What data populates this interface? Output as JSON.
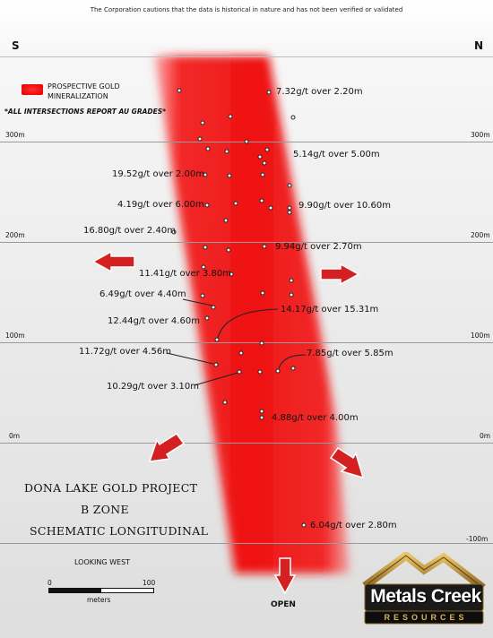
{
  "caution": "The Corporation cautions that the data is historical in nature and has not been verified or validated",
  "compass": {
    "left": "S",
    "right": "N"
  },
  "legend": {
    "label_line1": "PROSPECTIVE GOLD",
    "label_line2": "MINERALIZATION",
    "color": "#ee1111"
  },
  "note": "*ALL INTERSECTIONS REPORT AU GRADES*",
  "elevations": [
    {
      "left": "300m",
      "right": "300m"
    },
    {
      "left": "200m",
      "right": "200m"
    },
    {
      "left": "100m",
      "right": "100m"
    },
    {
      "left": "0m",
      "right": "0m"
    },
    {
      "left": "",
      "right": "-100m"
    }
  ],
  "intersections": [
    "7.32g/t over 2.20m",
    "5.14g/t over 5.00m",
    "19.52g/t over 2.00m",
    "4.19g/t over 6.00m",
    "9.90g/t over 10.60m",
    "16.80g/t over 2.40m",
    "9.94g/t over 2.70m",
    "11.41g/t over 3.80m",
    "6.49g/t over 4.40m",
    "14.17g/t over 15.31m",
    "12.44g/t over 4.60m",
    "11.72g/t over 4.56m",
    "7.85g/t over 5.85m",
    "10.29g/t over 3.10m",
    "4.88g/t over 4.00m",
    "6.04g/t over 2.80m"
  ],
  "title": {
    "line1": "DONA LAKE GOLD PROJECT",
    "line2": "B ZONE",
    "line3": "SCHEMATIC LONGITUDINAL"
  },
  "looking": "LOOKING WEST",
  "scale": {
    "start": "0",
    "end": "100",
    "unit": "meters"
  },
  "open_label": "OPEN",
  "logo": {
    "line1": "Metals Creek",
    "line2": "RESOURCES"
  },
  "colors": {
    "zone": "#ee1111",
    "arrow": "#d42020"
  }
}
